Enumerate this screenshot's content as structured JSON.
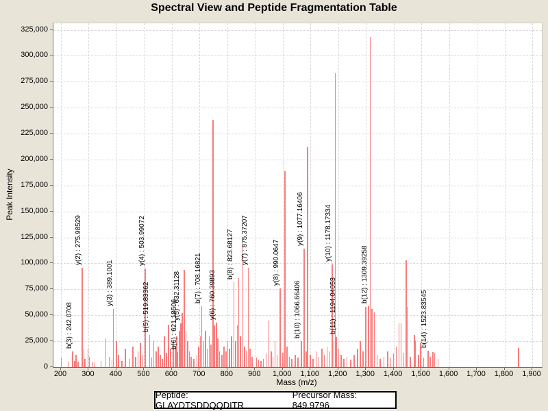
{
  "title": "Spectral View and Peptide Fragmentation Table",
  "footer": {
    "peptide": "Peptide: GLAYDTSDDQQDITR",
    "precursor": "Precursor Mass: 849.9796"
  },
  "colors": {
    "background": "#e8e5d8",
    "plot_background": "#ffffff",
    "peak": "#f87c7c",
    "grid": "#d9d9d9",
    "axis": "#6e6e6e",
    "text": "#000000"
  },
  "chart_data": {
    "type": "bar",
    "title": "Spectral View and Peptide Fragmentation Table",
    "xlabel": "Mass (m/z)",
    "ylabel": "Peak Intensity",
    "xlim": [
      200,
      1900
    ],
    "ylim": [
      0,
      325000
    ],
    "grid": true,
    "legend": false,
    "x_ticks": [
      200,
      300,
      400,
      500,
      600,
      700,
      800,
      900,
      1000,
      1100,
      1200,
      1300,
      1400,
      1500,
      1600,
      1700,
      1800,
      1900
    ],
    "x_tick_labels": [
      "200",
      "300",
      "400",
      "500",
      "600",
      "700",
      "800",
      "900",
      "1,000",
      "1,100",
      "1,200",
      "1,300",
      "1,400",
      "1,500",
      "1,600",
      "1,700",
      "1,800",
      "1,900"
    ],
    "y_ticks": [
      0,
      25000,
      50000,
      75000,
      100000,
      125000,
      150000,
      175000,
      200000,
      225000,
      250000,
      275000,
      300000,
      325000
    ],
    "y_tick_labels": [
      "0",
      "25,000",
      "50,000",
      "75,000",
      "100,000",
      "125,000",
      "150,000",
      "175,000",
      "200,000",
      "225,000",
      "250,000",
      "275,000",
      "300,000",
      "325,000"
    ],
    "annotated_ions": [
      {
        "ion": "b(3)",
        "mz": 242.0708
      },
      {
        "ion": "y(2)",
        "mz": 275.98529
      },
      {
        "ion": "y(3)",
        "mz": 389.1001
      },
      {
        "ion": "y(4)",
        "mz": 503.99072
      },
      {
        "ion": "b(5)",
        "mz": 519.83362
      },
      {
        "ion": "b(6)",
        "mz": 621.18506
      },
      {
        "ion": "y(5)",
        "mz": 632.31128
      },
      {
        "ion": "b(7)",
        "mz": 708.16821
      },
      {
        "ion": "y(6)",
        "mz": 760.39893
      },
      {
        "ion": "b(8)",
        "mz": 823.68127
      },
      {
        "ion": "y(7)",
        "mz": 875.37207
      },
      {
        "ion": "y(8)",
        "mz": 990.0647
      },
      {
        "ion": "b(10)",
        "mz": 1066.66406
      },
      {
        "ion": "y(9)",
        "mz": 1077.16406
      },
      {
        "ion": "y(10)",
        "mz": 1178.17334
      },
      {
        "ion": "b(11)",
        "mz": 1194.04053
      },
      {
        "ion": "b(12)",
        "mz": 1309.39258
      },
      {
        "ion": "b(14)",
        "mz": 1523.83545
      }
    ],
    "peaks": [
      {
        "mz": 201,
        "i": 9000
      },
      {
        "mz": 228,
        "i": 5000
      },
      {
        "mz": 242.0708,
        "i": 15000,
        "label": "b(3) : 242.0708"
      },
      {
        "mz": 249,
        "i": 6000
      },
      {
        "mz": 255,
        "i": 12000
      },
      {
        "mz": 262,
        "i": 5500
      },
      {
        "mz": 275.98529,
        "i": 96000,
        "label": "y(2) : 275.98529"
      },
      {
        "mz": 283,
        "i": 17000
      },
      {
        "mz": 287,
        "i": 8000
      },
      {
        "mz": 298,
        "i": 17000
      },
      {
        "mz": 303,
        "i": 10000
      },
      {
        "mz": 315,
        "i": 5000
      },
      {
        "mz": 322,
        "i": 4500
      },
      {
        "mz": 345,
        "i": 6000
      },
      {
        "mz": 362,
        "i": 28000
      },
      {
        "mz": 374,
        "i": 10000
      },
      {
        "mz": 384,
        "i": 7000
      },
      {
        "mz": 389.1001,
        "i": 56000,
        "label": "y(3) : 389.1001"
      },
      {
        "mz": 400,
        "i": 25000
      },
      {
        "mz": 408,
        "i": 12000
      },
      {
        "mz": 420,
        "i": 6000
      },
      {
        "mz": 433,
        "i": 18000
      },
      {
        "mz": 448,
        "i": 8000
      },
      {
        "mz": 460,
        "i": 20000
      },
      {
        "mz": 470,
        "i": 10000
      },
      {
        "mz": 478,
        "i": 15000
      },
      {
        "mz": 487,
        "i": 23000
      },
      {
        "mz": 495,
        "i": 12000
      },
      {
        "mz": 503.99072,
        "i": 95000,
        "label": "y(4) : 503.99072"
      },
      {
        "mz": 519.83362,
        "i": 31000,
        "label": "b(5) : 519.83362"
      },
      {
        "mz": 527,
        "i": 9000
      },
      {
        "mz": 535,
        "i": 25000
      },
      {
        "mz": 543,
        "i": 15000
      },
      {
        "mz": 551,
        "i": 20000
      },
      {
        "mz": 558,
        "i": 12000
      },
      {
        "mz": 565,
        "i": 8000
      },
      {
        "mz": 573,
        "i": 30000
      },
      {
        "mz": 580,
        "i": 14000
      },
      {
        "mz": 588,
        "i": 41000
      },
      {
        "mz": 596,
        "i": 18000
      },
      {
        "mz": 605,
        "i": 25000
      },
      {
        "mz": 612,
        "i": 20000
      },
      {
        "mz": 618,
        "i": 30000
      },
      {
        "mz": 621.18506,
        "i": 14500,
        "label": "b(6) : 621.18506"
      },
      {
        "mz": 627,
        "i": 35000
      },
      {
        "mz": 632.31128,
        "i": 42000,
        "label": "y(5) : 632.31128"
      },
      {
        "mz": 638,
        "i": 52000
      },
      {
        "mz": 645,
        "i": 94000
      },
      {
        "mz": 651,
        "i": 35000
      },
      {
        "mz": 657,
        "i": 25000
      },
      {
        "mz": 663,
        "i": 15000
      },
      {
        "mz": 670,
        "i": 10000
      },
      {
        "mz": 680,
        "i": 8000
      },
      {
        "mz": 690,
        "i": 12000
      },
      {
        "mz": 697,
        "i": 20000
      },
      {
        "mz": 703,
        "i": 30000
      },
      {
        "mz": 708.16821,
        "i": 59000,
        "label": "b(7) : 708.16821"
      },
      {
        "mz": 715,
        "i": 25000
      },
      {
        "mz": 722,
        "i": 35000
      },
      {
        "mz": 728,
        "i": 18000
      },
      {
        "mz": 735,
        "i": 30000
      },
      {
        "mz": 741,
        "i": 22000
      },
      {
        "mz": 748,
        "i": 238000
      },
      {
        "mz": 754,
        "i": 40000
      },
      {
        "mz": 760.39893,
        "i": 43000,
        "label": "y(6) : 760.39893"
      },
      {
        "mz": 766,
        "i": 28000
      },
      {
        "mz": 772,
        "i": 15000
      },
      {
        "mz": 780,
        "i": 12000
      },
      {
        "mz": 788,
        "i": 20000
      },
      {
        "mz": 795,
        "i": 15000
      },
      {
        "mz": 802,
        "i": 25000
      },
      {
        "mz": 808,
        "i": 18000
      },
      {
        "mz": 815,
        "i": 30000
      },
      {
        "mz": 823.68127,
        "i": 82000,
        "label": "b(8) : 823.68127"
      },
      {
        "mz": 830,
        "i": 25000
      },
      {
        "mz": 836,
        "i": 40000
      },
      {
        "mz": 841,
        "i": 86000
      },
      {
        "mz": 848,
        "i": 30000
      },
      {
        "mz": 856,
        "i": 117000
      },
      {
        "mz": 862,
        "i": 20000
      },
      {
        "mz": 868,
        "i": 16000
      },
      {
        "mz": 875.37207,
        "i": 96000,
        "label": "y(7) : 875.37207"
      },
      {
        "mz": 882,
        "i": 18000
      },
      {
        "mz": 890,
        "i": 10000
      },
      {
        "mz": 905,
        "i": 9000
      },
      {
        "mz": 913,
        "i": 7000
      },
      {
        "mz": 922,
        "i": 6000
      },
      {
        "mz": 930,
        "i": 8000
      },
      {
        "mz": 940,
        "i": 13000
      },
      {
        "mz": 950,
        "i": 45000
      },
      {
        "mz": 958,
        "i": 15000
      },
      {
        "mz": 965,
        "i": 10000
      },
      {
        "mz": 972,
        "i": 25000
      },
      {
        "mz": 980,
        "i": 12000
      },
      {
        "mz": 990.0647,
        "i": 76000,
        "label": "y(8) : 990.0647"
      },
      {
        "mz": 1000,
        "i": 14000
      },
      {
        "mz": 1008,
        "i": 189000
      },
      {
        "mz": 1016,
        "i": 20000
      },
      {
        "mz": 1024,
        "i": 10000
      },
      {
        "mz": 1032,
        "i": 8000
      },
      {
        "mz": 1045,
        "i": 12000
      },
      {
        "mz": 1055,
        "i": 9000
      },
      {
        "mz": 1066.66406,
        "i": 25000,
        "label": "b(10) : 1066.66406"
      },
      {
        "mz": 1077.16406,
        "i": 114000,
        "label": "y(9) : 1077.16406"
      },
      {
        "mz": 1085,
        "i": 15000
      },
      {
        "mz": 1090,
        "i": 212000
      },
      {
        "mz": 1100,
        "i": 12000
      },
      {
        "mz": 1110,
        "i": 8000
      },
      {
        "mz": 1120,
        "i": 15000
      },
      {
        "mz": 1130,
        "i": 10000
      },
      {
        "mz": 1142,
        "i": 18000
      },
      {
        "mz": 1150,
        "i": 12000
      },
      {
        "mz": 1160,
        "i": 20000
      },
      {
        "mz": 1170,
        "i": 15000
      },
      {
        "mz": 1178.17334,
        "i": 99000,
        "label": "y(10) : 1178.17334"
      },
      {
        "mz": 1185,
        "i": 25000
      },
      {
        "mz": 1190,
        "i": 283000
      },
      {
        "mz": 1194.04053,
        "i": 29000,
        "label": "b(11) : 1194.04053"
      },
      {
        "mz": 1202,
        "i": 18000
      },
      {
        "mz": 1210,
        "i": 12000
      },
      {
        "mz": 1220,
        "i": 8000
      },
      {
        "mz": 1232,
        "i": 10000
      },
      {
        "mz": 1245,
        "i": 7000
      },
      {
        "mz": 1258,
        "i": 12000
      },
      {
        "mz": 1270,
        "i": 18000
      },
      {
        "mz": 1280,
        "i": 25000
      },
      {
        "mz": 1290,
        "i": 15000
      },
      {
        "mz": 1300,
        "i": 58000
      },
      {
        "mz": 1309.39258,
        "i": 59000,
        "label": "b(12) : 1309.39258"
      },
      {
        "mz": 1316,
        "i": 318000
      },
      {
        "mz": 1322,
        "i": 56000
      },
      {
        "mz": 1330,
        "i": 53000
      },
      {
        "mz": 1340,
        "i": 12000
      },
      {
        "mz": 1352,
        "i": 8000
      },
      {
        "mz": 1365,
        "i": 10000
      },
      {
        "mz": 1378,
        "i": 15000
      },
      {
        "mz": 1390,
        "i": 9000
      },
      {
        "mz": 1400,
        "i": 13000
      },
      {
        "mz": 1410,
        "i": 20000
      },
      {
        "mz": 1419,
        "i": 42000
      },
      {
        "mz": 1427,
        "i": 42000
      },
      {
        "mz": 1437,
        "i": 14000
      },
      {
        "mz": 1445,
        "i": 103000
      },
      {
        "mz": 1449,
        "i": 58000
      },
      {
        "mz": 1460,
        "i": 10000
      },
      {
        "mz": 1475,
        "i": 31000
      },
      {
        "mz": 1479,
        "i": 26000
      },
      {
        "mz": 1490,
        "i": 12000
      },
      {
        "mz": 1497,
        "i": 23000
      },
      {
        "mz": 1508,
        "i": 9000
      },
      {
        "mz": 1523.83545,
        "i": 16000,
        "label": "b(14) : 1523.83545"
      },
      {
        "mz": 1532,
        "i": 10000
      },
      {
        "mz": 1541,
        "i": 14500
      },
      {
        "mz": 1548,
        "i": 14000
      },
      {
        "mz": 1560,
        "i": 8000
      },
      {
        "mz": 1851,
        "i": 18500
      }
    ]
  }
}
